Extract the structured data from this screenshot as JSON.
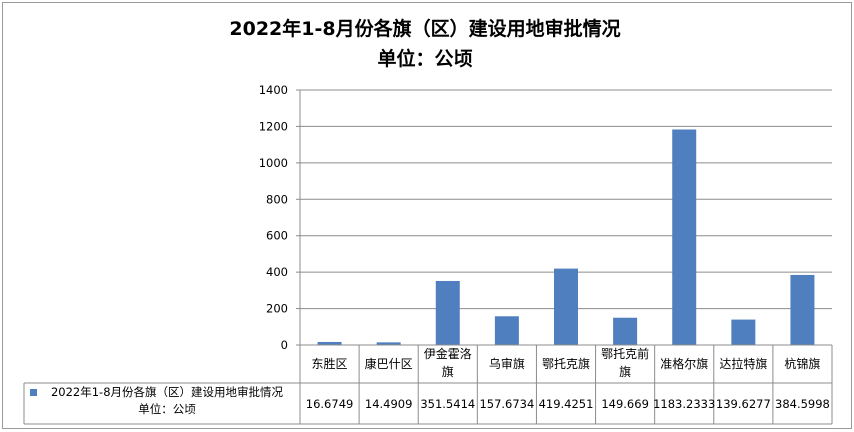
{
  "chart_data": {
    "type": "bar",
    "title": "2022年1-8月份各旗（区）建设用地审批情况",
    "subtitle": "单位：公顷",
    "categories": [
      "东胜区",
      "康巴什区",
      "伊金霍洛旗",
      "乌审旗",
      "鄂托克旗",
      "鄂托克前旗",
      "准格尔旗",
      "达拉特旗",
      "杭锦旗"
    ],
    "category_display": [
      "东胜区",
      "康巴什区",
      "伊金霍洛\n旗",
      "乌审旗",
      "鄂托克旗",
      "鄂托克前\n旗",
      "准格尔旗",
      "达拉特旗",
      "杭锦旗"
    ],
    "series": [
      {
        "name": "2022年1-8月份各旗（区）建设用地审批情况\n单位：公顷",
        "values": [
          16.6749,
          14.4909,
          351.5414,
          157.6734,
          419.4251,
          149.669,
          1183.2333,
          139.6277,
          384.5998
        ],
        "labels": [
          "16.6749",
          "14.4909",
          "351.5414",
          "157.6734",
          "419.4251",
          "149.669",
          "1183.2333",
          "139.6277",
          "384.5998"
        ],
        "color": "#4f7fbf"
      }
    ],
    "ylim": [
      0,
      1400
    ],
    "yticks": [
      0,
      200,
      400,
      600,
      800,
      1000,
      1200,
      1400
    ],
    "grid": true,
    "legend": "data-table-left",
    "data_table": true
  }
}
